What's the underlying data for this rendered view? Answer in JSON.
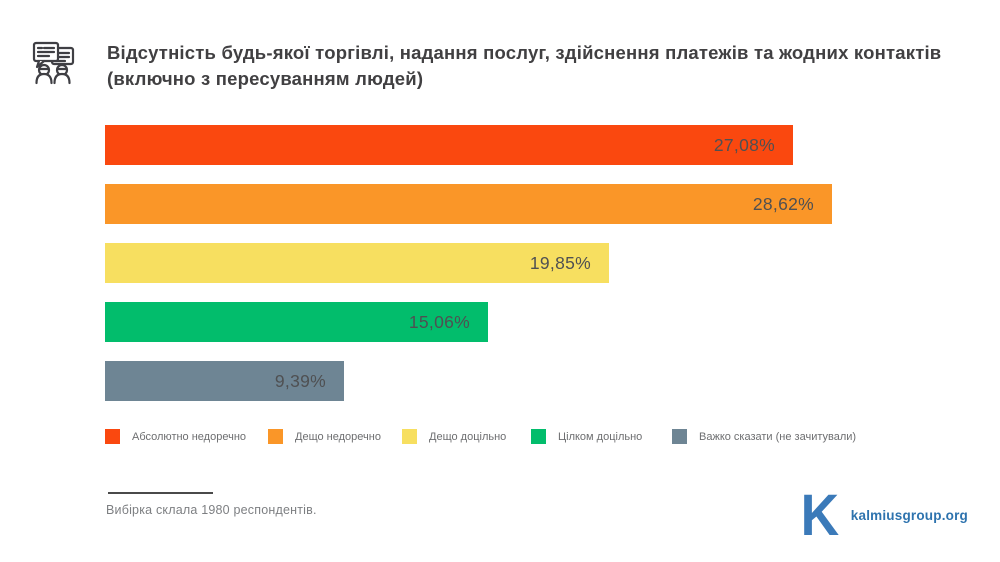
{
  "header": {
    "title_line1": "Відсутність будь-якої торгівлі, надання послуг, здійснення платежів та жодних контактів",
    "title_line2": "(включно з пересуванням людей)"
  },
  "chart_data": {
    "type": "bar",
    "orientation": "horizontal",
    "title": "Відсутність будь-якої торгівлі, надання послуг, здійснення платежів та жодних контактів (включно з пересуванням людей)",
    "categories": [
      "Абсолютно недоречно",
      "Дещо недоречно",
      "Дещо доцільно",
      "Цілком доцільно",
      "Важко сказати (не зачитували)"
    ],
    "values": [
      27.08,
      28.62,
      19.85,
      15.06,
      9.39
    ],
    "value_labels": [
      "27,08%",
      "28,62%",
      "19,85%",
      "15,06%",
      "9,39%"
    ],
    "colors": [
      "#fa480f",
      "#fa9628",
      "#f7df60",
      "#02bd6c",
      "#6e8594"
    ],
    "axis_max": 28.62,
    "grid": false,
    "legend_position": "bottom",
    "value_label_position": "inside-end"
  },
  "footer": {
    "note": "Вибірка склала 1980 респондентів.",
    "logo_letter": "K",
    "brand_url": "kalmiusgroup.org"
  },
  "palette": {
    "title_text": "#414042",
    "value_text": "#4f5052",
    "legend_text": "#6d6e70",
    "note_text": "#7d7f82",
    "brand_blue": "#2e73ae",
    "background": "#ffffff"
  }
}
